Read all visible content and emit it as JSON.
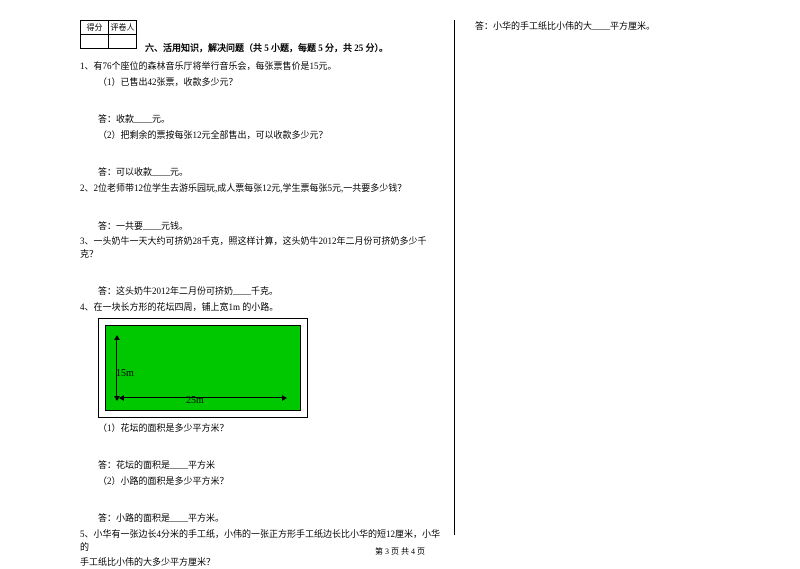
{
  "scorebox": {
    "c1": "得分",
    "c2": "评卷人"
  },
  "sectionTitle": "六、活用知识，解决问题（共 5 小题，每题 5 分，共 25 分）。",
  "q1": {
    "stem": "1、有76个座位的森林音乐厅将举行音乐会，每张票售价是15元。",
    "p1": "（1）已售出42张票，收款多少元？",
    "a1": "答：收款____元。",
    "p2": "（2）把剩余的票按每张12元全部售出，可以收款多少元？",
    "a2": "答：可以收款____元。"
  },
  "q2": {
    "stem": "2、2位老师带12位学生去游乐园玩,成人票每张12元,学生票每张5元,一共要多少钱？",
    "a": "答：一共要____元钱。"
  },
  "q3": {
    "stem": "3、一头奶牛一天大约可挤奶28千克，照这样计算，这头奶牛2012年二月份可挤奶多少千克？",
    "a": "答：这头奶牛2012年二月份可挤奶____千克。"
  },
  "q4": {
    "stem": "4、在一块长方形的花坛四周，铺上宽1m 的小路。",
    "dim_h": "15m",
    "dim_w": "25m",
    "p1": "（1）花坛的面积是多少平方米？",
    "a1": "答：花坛的面积是____平方米",
    "p2": "（2）小路的面积是多少平方米？",
    "a2": "答：小路的面积是____平方米。"
  },
  "q5": {
    "stem1": "5、小华有一张边长4分米的手工纸，小伟的一张正方形手工纸边长比小华的短12厘米，小华的",
    "stem2": "手工纸比小伟的大多少平方厘米？",
    "a": "答：小华的手工纸比小伟的大____平方厘米。"
  },
  "footer": "第 3 页 共 4 页",
  "figure_colors": {
    "outer": "#ffffff",
    "inner": "#00c800",
    "border": "#000000"
  }
}
